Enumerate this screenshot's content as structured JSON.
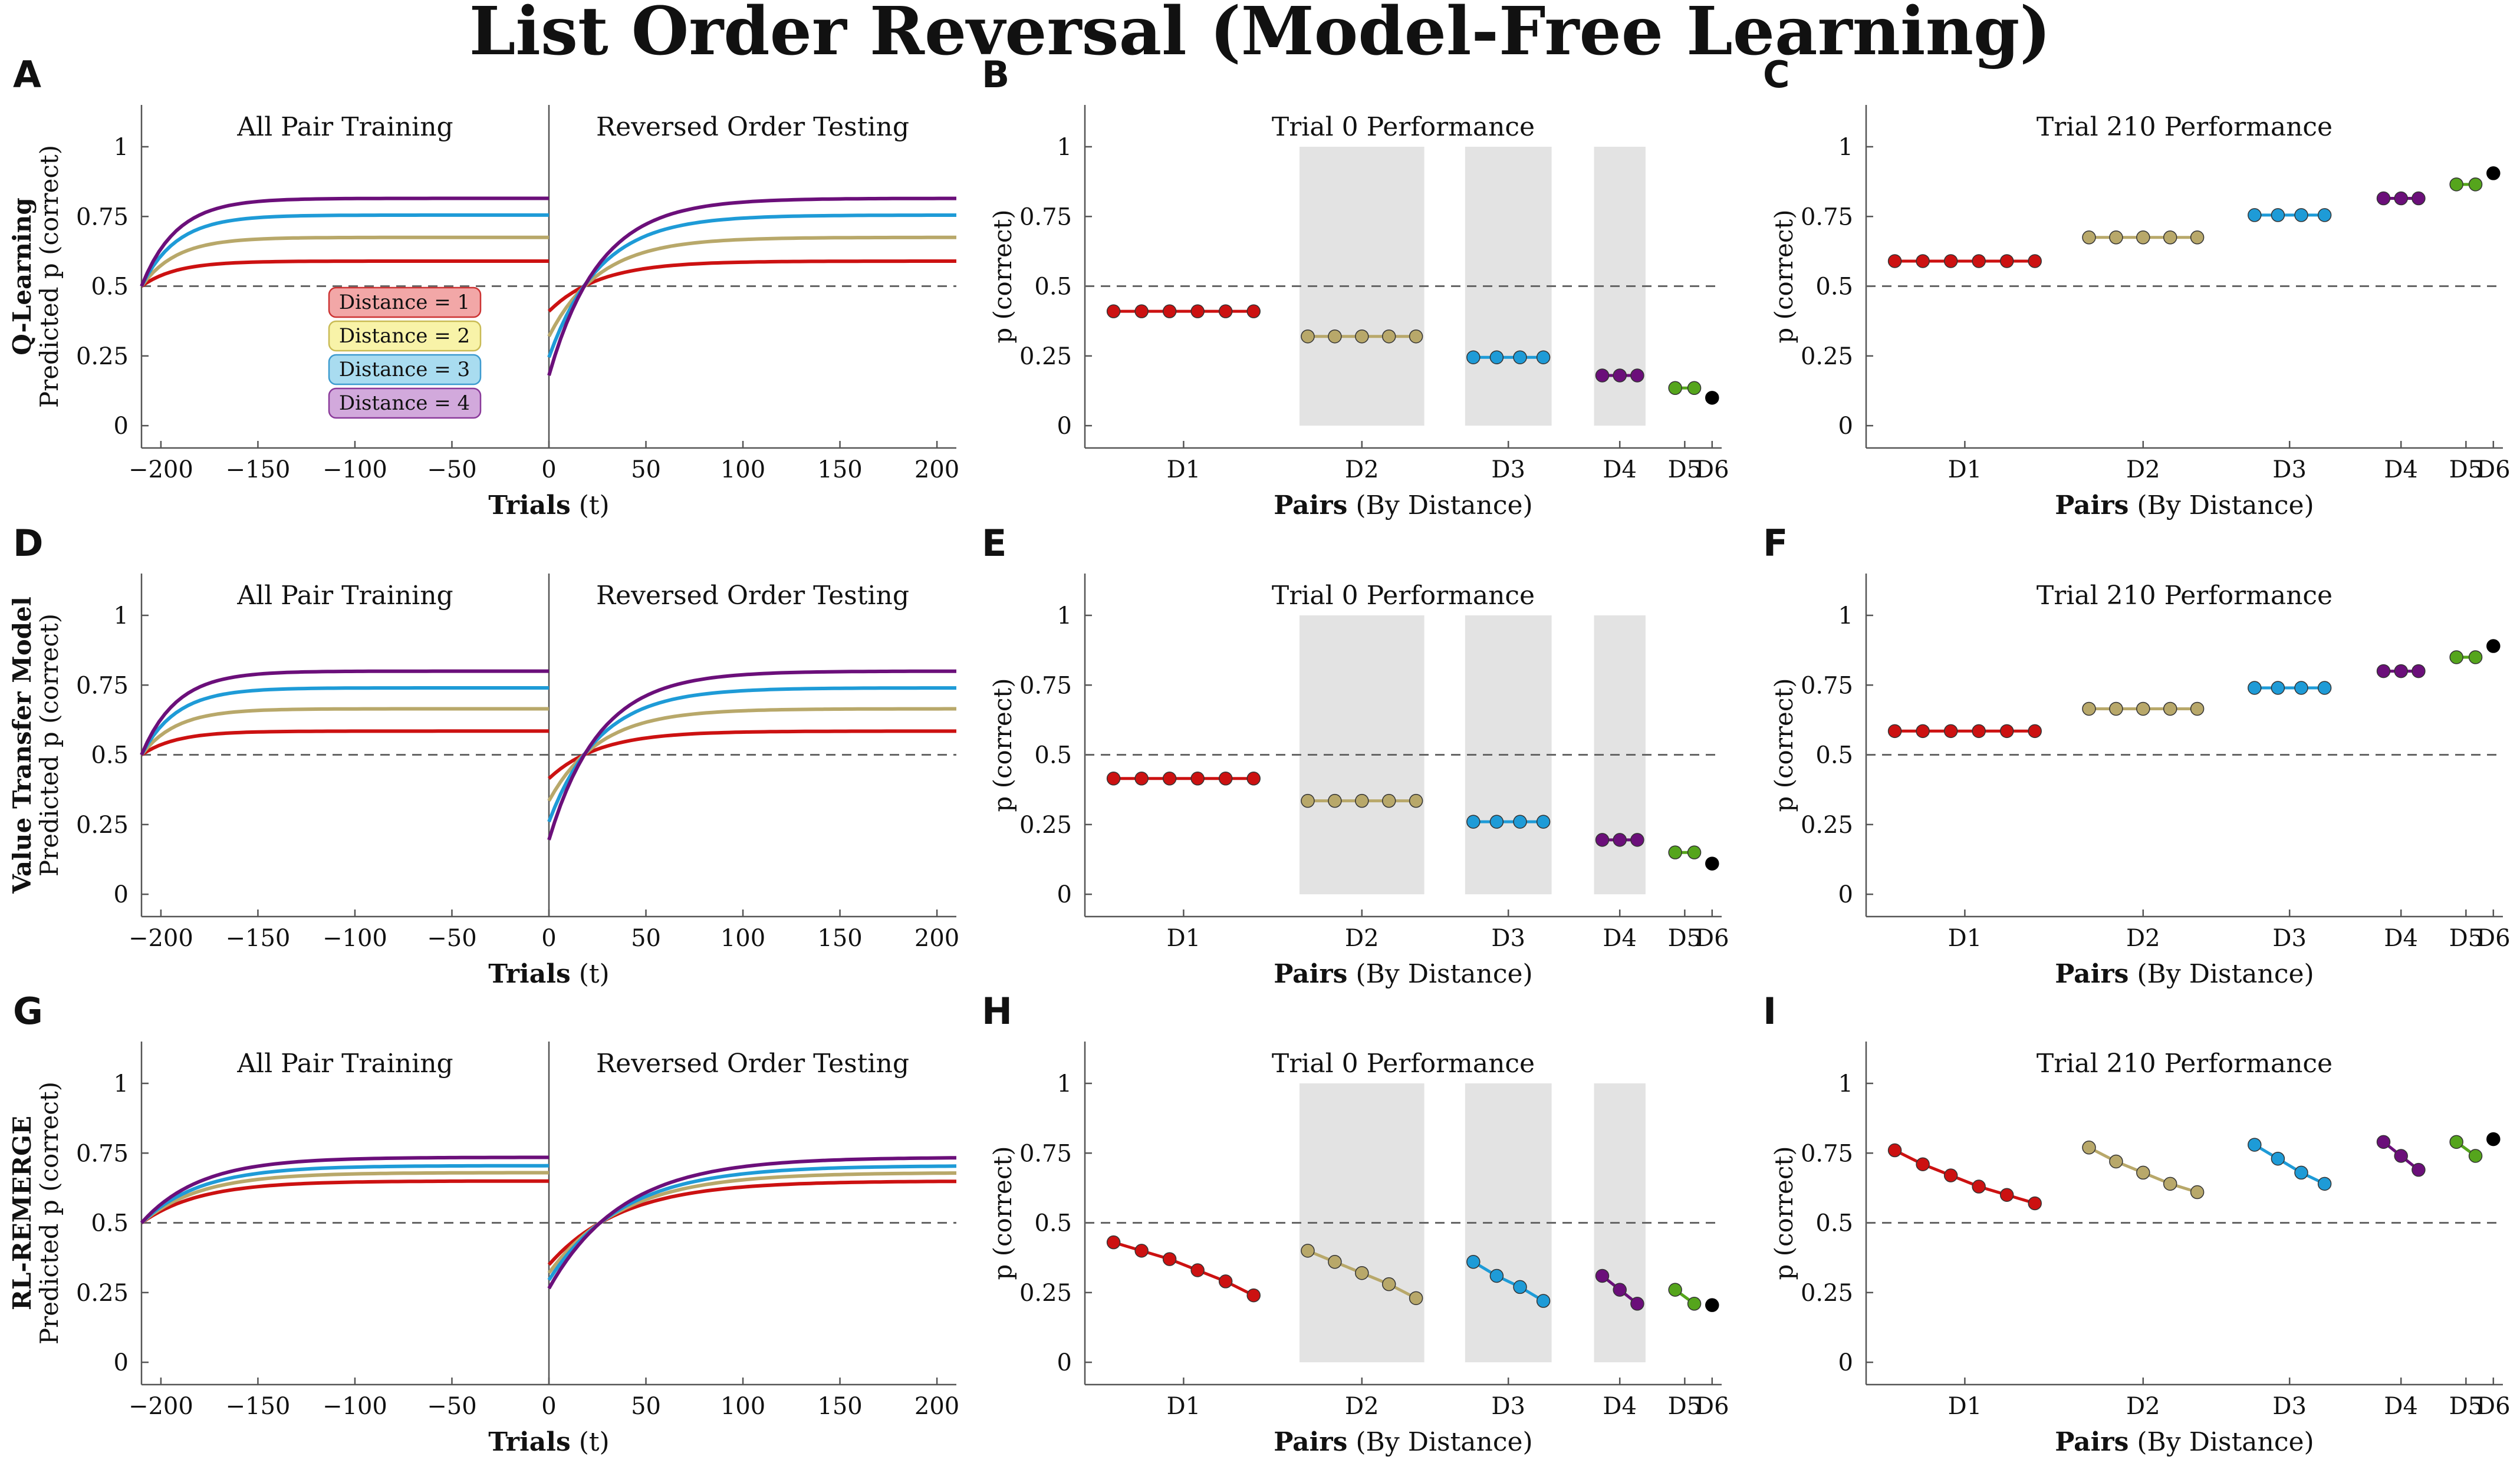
{
  "figure": {
    "title": "List Order Reversal (Model-Free Learning)",
    "colors": {
      "d1": "#cc1111",
      "d2": "#b8a86a",
      "d3": "#1e9bd7",
      "d4": "#6b0f7a",
      "d5": "#55a51c",
      "d6": "#000000",
      "shade": "#e3e3e3",
      "axis": "#555555",
      "ref": "#666666"
    },
    "legend": [
      {
        "label": "Distance = 1",
        "fill": "#f2a7a7",
        "stroke": "#cc3333"
      },
      {
        "label": "Distance = 2",
        "fill": "#f8f3a8",
        "stroke": "#c9bb55"
      },
      {
        "label": "Distance = 3",
        "fill": "#a9dcf0",
        "stroke": "#3d9bcf"
      },
      {
        "label": "Distance = 4",
        "fill": "#d2a9dc",
        "stroke": "#8a3a9a"
      }
    ],
    "rows": [
      {
        "name": "Q-Learning",
        "sub": "Predicted p (correct)"
      },
      {
        "name": "Value Transfer Model",
        "sub": "Predicted p (correct)"
      },
      {
        "name": "RL-REMERGE",
        "sub": "Predicted p (correct)"
      }
    ]
  },
  "chart_data": [
    {
      "panel": "A",
      "type": "line",
      "row": 0,
      "xlabel_bold": "Trials",
      "xlabel_rest": " (t)",
      "ylabel_main": "Q-Learning",
      "ylabel_sub": "Predicted p (correct)",
      "section_titles": [
        "All Pair Training",
        "Reversed Order Testing"
      ],
      "xlim": [
        -210,
        210
      ],
      "ylim": [
        -0.08,
        1.15
      ],
      "xticks": [
        -200,
        -150,
        -100,
        -50,
        0,
        50,
        100,
        150,
        200
      ],
      "yticks": [
        0,
        0.25,
        0.5,
        0.75,
        1
      ],
      "ytick_labels": [
        "0",
        "0.25",
        "0.5",
        "0.75",
        "1"
      ],
      "reference_y": 0.5,
      "training": {
        "start": 0.5,
        "plateaus": [
          0.59,
          0.675,
          0.755,
          0.815
        ],
        "tau": 18
      },
      "testing": {
        "starts": [
          0.41,
          0.32,
          0.245,
          0.18
        ],
        "plateaus": [
          0.59,
          0.675,
          0.755,
          0.815
        ],
        "tau": 26
      },
      "series": [
        "Distance = 1",
        "Distance = 2",
        "Distance = 3",
        "Distance = 4"
      ],
      "show_legend": true
    },
    {
      "panel": "B",
      "type": "scatter",
      "row": 0,
      "title": "Trial 0 Performance",
      "xlabel_bold": "Pairs",
      "xlabel_rest": " (By Distance)",
      "ylabel": "p (correct)",
      "categories": [
        "D1",
        "D2",
        "D3",
        "D4",
        "D5",
        "D6"
      ],
      "ylim": [
        -0.08,
        1.15
      ],
      "yticks": [
        0,
        0.25,
        0.5,
        0.75,
        1
      ],
      "ytick_labels": [
        "0",
        "0.25",
        "0.5",
        "0.75",
        "1"
      ],
      "reference_y": 0.5,
      "shaded": [
        "D2",
        "D3",
        "D4"
      ],
      "groups": [
        {
          "name": "D1",
          "values": [
            0.41,
            0.41,
            0.41,
            0.41,
            0.41,
            0.41
          ]
        },
        {
          "name": "D2",
          "values": [
            0.32,
            0.32,
            0.32,
            0.32,
            0.32
          ]
        },
        {
          "name": "D3",
          "values": [
            0.245,
            0.245,
            0.245,
            0.245
          ]
        },
        {
          "name": "D4",
          "values": [
            0.18,
            0.18,
            0.18
          ]
        },
        {
          "name": "D5",
          "values": [
            0.135,
            0.135
          ]
        },
        {
          "name": "D6",
          "values": [
            0.1
          ]
        }
      ]
    },
    {
      "panel": "C",
      "type": "scatter",
      "row": 0,
      "title": "Trial 210 Performance",
      "xlabel_bold": "Pairs",
      "xlabel_rest": " (By Distance)",
      "ylabel": "p (correct)",
      "categories": [
        "D1",
        "D2",
        "D3",
        "D4",
        "D5",
        "D6"
      ],
      "ylim": [
        -0.08,
        1.15
      ],
      "yticks": [
        0,
        0.25,
        0.5,
        0.75,
        1
      ],
      "ytick_labels": [
        "0",
        "0.25",
        "0.5",
        "0.75",
        "1"
      ],
      "reference_y": 0.5,
      "shaded": [],
      "groups": [
        {
          "name": "D1",
          "values": [
            0.59,
            0.59,
            0.59,
            0.59,
            0.59,
            0.59
          ]
        },
        {
          "name": "D2",
          "values": [
            0.675,
            0.675,
            0.675,
            0.675,
            0.675
          ]
        },
        {
          "name": "D3",
          "values": [
            0.755,
            0.755,
            0.755,
            0.755
          ]
        },
        {
          "name": "D4",
          "values": [
            0.815,
            0.815,
            0.815
          ]
        },
        {
          "name": "D5",
          "values": [
            0.865,
            0.865
          ]
        },
        {
          "name": "D6",
          "values": [
            0.905
          ]
        }
      ]
    },
    {
      "panel": "D",
      "type": "line",
      "row": 1,
      "xlabel_bold": "Trials",
      "xlabel_rest": " (t)",
      "ylabel_main": "Value Transfer Model",
      "ylabel_sub": "Predicted p (correct)",
      "section_titles": [
        "All Pair Training",
        "Reversed Order Testing"
      ],
      "xlim": [
        -210,
        210
      ],
      "ylim": [
        -0.08,
        1.15
      ],
      "xticks": [
        -200,
        -150,
        -100,
        -50,
        0,
        50,
        100,
        150,
        200
      ],
      "yticks": [
        0,
        0.25,
        0.5,
        0.75,
        1
      ],
      "ytick_labels": [
        "0",
        "0.25",
        "0.5",
        "0.75",
        "1"
      ],
      "reference_y": 0.5,
      "training": {
        "start": 0.5,
        "plateaus": [
          0.585,
          0.665,
          0.74,
          0.8
        ],
        "tau": 18
      },
      "testing": {
        "starts": [
          0.415,
          0.335,
          0.26,
          0.195
        ],
        "plateaus": [
          0.585,
          0.665,
          0.74,
          0.8
        ],
        "tau": 26
      },
      "series": [
        "Distance = 1",
        "Distance = 2",
        "Distance = 3",
        "Distance = 4"
      ],
      "show_legend": false
    },
    {
      "panel": "E",
      "type": "scatter",
      "row": 1,
      "title": "Trial 0 Performance",
      "xlabel_bold": "Pairs",
      "xlabel_rest": " (By Distance)",
      "ylabel": "p (correct)",
      "categories": [
        "D1",
        "D2",
        "D3",
        "D4",
        "D5",
        "D6"
      ],
      "ylim": [
        -0.08,
        1.15
      ],
      "yticks": [
        0,
        0.25,
        0.5,
        0.75,
        1
      ],
      "ytick_labels": [
        "0",
        "0.25",
        "0.5",
        "0.75",
        "1"
      ],
      "reference_y": 0.5,
      "shaded": [
        "D2",
        "D3",
        "D4"
      ],
      "groups": [
        {
          "name": "D1",
          "values": [
            0.415,
            0.415,
            0.415,
            0.415,
            0.415,
            0.415
          ]
        },
        {
          "name": "D2",
          "values": [
            0.335,
            0.335,
            0.335,
            0.335,
            0.335
          ]
        },
        {
          "name": "D3",
          "values": [
            0.26,
            0.26,
            0.26,
            0.26
          ]
        },
        {
          "name": "D4",
          "values": [
            0.195,
            0.195,
            0.195
          ]
        },
        {
          "name": "D5",
          "values": [
            0.15,
            0.15
          ]
        },
        {
          "name": "D6",
          "values": [
            0.11
          ]
        }
      ]
    },
    {
      "panel": "F",
      "type": "scatter",
      "row": 1,
      "title": "Trial 210 Performance",
      "xlabel_bold": "Pairs",
      "xlabel_rest": " (By Distance)",
      "ylabel": "p (correct)",
      "categories": [
        "D1",
        "D2",
        "D3",
        "D4",
        "D5",
        "D6"
      ],
      "ylim": [
        -0.08,
        1.15
      ],
      "yticks": [
        0,
        0.25,
        0.5,
        0.75,
        1
      ],
      "ytick_labels": [
        "0",
        "0.25",
        "0.5",
        "0.75",
        "1"
      ],
      "reference_y": 0.5,
      "shaded": [],
      "groups": [
        {
          "name": "D1",
          "values": [
            0.585,
            0.585,
            0.585,
            0.585,
            0.585,
            0.585
          ]
        },
        {
          "name": "D2",
          "values": [
            0.665,
            0.665,
            0.665,
            0.665,
            0.665
          ]
        },
        {
          "name": "D3",
          "values": [
            0.74,
            0.74,
            0.74,
            0.74
          ]
        },
        {
          "name": "D4",
          "values": [
            0.8,
            0.8,
            0.8
          ]
        },
        {
          "name": "D5",
          "values": [
            0.85,
            0.85
          ]
        },
        {
          "name": "D6",
          "values": [
            0.89
          ]
        }
      ]
    },
    {
      "panel": "G",
      "type": "line",
      "row": 2,
      "xlabel_bold": "Trials",
      "xlabel_rest": " (t)",
      "ylabel_main": "RL-REMERGE",
      "ylabel_sub": "Predicted p (correct)",
      "section_titles": [
        "All Pair Training",
        "Reversed Order Testing"
      ],
      "xlim": [
        -210,
        210
      ],
      "ylim": [
        -0.08,
        1.15
      ],
      "xticks": [
        -200,
        -150,
        -100,
        -50,
        0,
        50,
        100,
        150,
        200
      ],
      "yticks": [
        0,
        0.25,
        0.5,
        0.75,
        1
      ],
      "ytick_labels": [
        "0",
        "0.25",
        "0.5",
        "0.75",
        "1"
      ],
      "reference_y": 0.5,
      "training": {
        "start": 0.5,
        "plateaus": [
          0.65,
          0.68,
          0.705,
          0.735
        ],
        "tau": 30
      },
      "testing": {
        "starts": [
          0.35,
          0.32,
          0.295,
          0.265
        ],
        "plateaus": [
          0.65,
          0.68,
          0.705,
          0.735
        ],
        "tau": 38
      },
      "series": [
        "Distance = 1",
        "Distance = 2",
        "Distance = 3",
        "Distance = 4"
      ],
      "show_legend": false
    },
    {
      "panel": "H",
      "type": "scatter",
      "row": 2,
      "title": "Trial 0 Performance",
      "xlabel_bold": "Pairs",
      "xlabel_rest": " (By Distance)",
      "ylabel": "p (correct)",
      "categories": [
        "D1",
        "D2",
        "D3",
        "D4",
        "D5",
        "D6"
      ],
      "ylim": [
        -0.08,
        1.15
      ],
      "yticks": [
        0,
        0.25,
        0.5,
        0.75,
        1
      ],
      "ytick_labels": [
        "0",
        "0.25",
        "0.5",
        "0.75",
        "1"
      ],
      "reference_y": 0.5,
      "shaded": [
        "D2",
        "D3",
        "D4"
      ],
      "groups": [
        {
          "name": "D1",
          "values": [
            0.43,
            0.4,
            0.37,
            0.33,
            0.29,
            0.24
          ]
        },
        {
          "name": "D2",
          "values": [
            0.4,
            0.36,
            0.32,
            0.28,
            0.23
          ]
        },
        {
          "name": "D3",
          "values": [
            0.36,
            0.31,
            0.27,
            0.22
          ]
        },
        {
          "name": "D4",
          "values": [
            0.31,
            0.26,
            0.21
          ]
        },
        {
          "name": "D5",
          "values": [
            0.26,
            0.21
          ]
        },
        {
          "name": "D6",
          "values": [
            0.205
          ]
        }
      ]
    },
    {
      "panel": "I",
      "type": "scatter",
      "row": 2,
      "title": "Trial 210 Performance",
      "xlabel_bold": "Pairs",
      "xlabel_rest": " (By Distance)",
      "ylabel": "p (correct)",
      "categories": [
        "D1",
        "D2",
        "D3",
        "D4",
        "D5",
        "D6"
      ],
      "ylim": [
        -0.08,
        1.15
      ],
      "yticks": [
        0,
        0.25,
        0.5,
        0.75,
        1
      ],
      "ytick_labels": [
        "0",
        "0.25",
        "0.5",
        "0.75",
        "1"
      ],
      "reference_y": 0.5,
      "shaded": [],
      "groups": [
        {
          "name": "D1",
          "values": [
            0.76,
            0.71,
            0.67,
            0.63,
            0.6,
            0.57
          ]
        },
        {
          "name": "D2",
          "values": [
            0.77,
            0.72,
            0.68,
            0.64,
            0.61
          ]
        },
        {
          "name": "D3",
          "values": [
            0.78,
            0.73,
            0.68,
            0.64
          ]
        },
        {
          "name": "D4",
          "values": [
            0.79,
            0.74,
            0.69
          ]
        },
        {
          "name": "D5",
          "values": [
            0.79,
            0.74
          ]
        },
        {
          "name": "D6",
          "values": [
            0.8
          ]
        }
      ]
    }
  ]
}
